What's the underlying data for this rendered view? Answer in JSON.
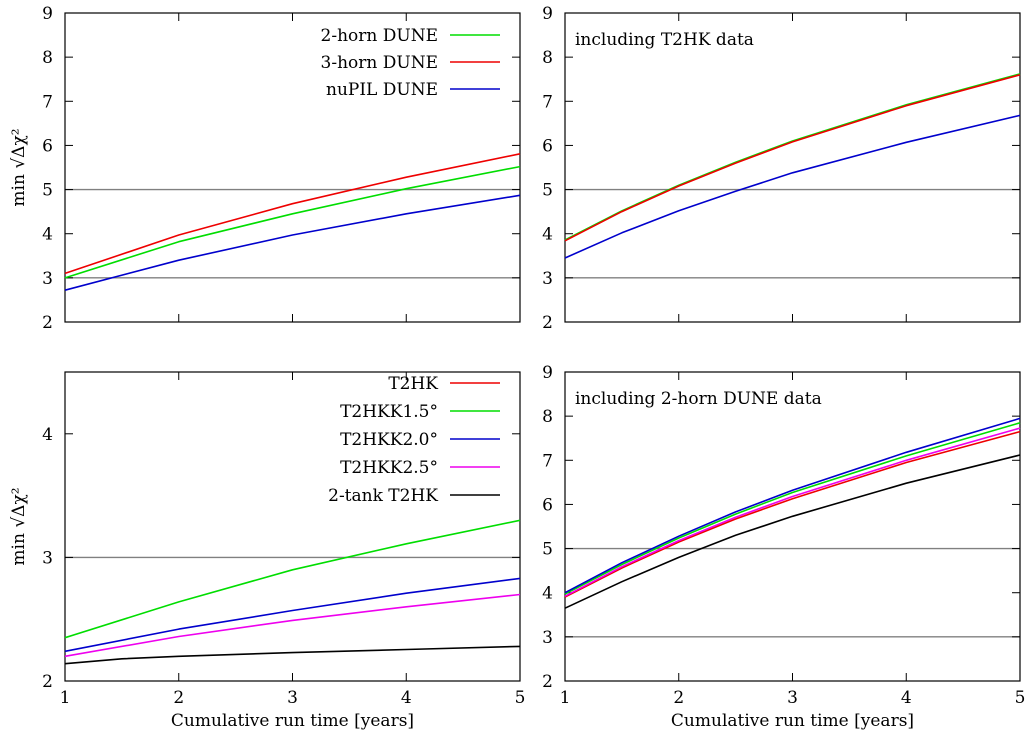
{
  "chart_data": [
    {
      "type": "line",
      "title": "",
      "xlabel": "",
      "ylabel": "min √Δχ²",
      "xlim": [
        1,
        5
      ],
      "ylim": [
        2,
        9
      ],
      "xticks": [
        "1",
        "2",
        "3",
        "4",
        "5"
      ],
      "yticks": [
        "2",
        "3",
        "4",
        "5",
        "6",
        "7",
        "8",
        "9"
      ],
      "show_xtick_labels": false,
      "reference_lines": [
        3,
        5
      ],
      "legend": "top-right",
      "annotation": "",
      "series": [
        {
          "name": "2-horn DUNE",
          "color": "#00dd00",
          "x": [
            1,
            2,
            3,
            4,
            5
          ],
          "values": [
            3.0,
            3.82,
            4.45,
            5.02,
            5.52
          ]
        },
        {
          "name": "3-horn DUNE",
          "color": "#ee0000",
          "x": [
            1,
            2,
            3,
            4,
            5
          ],
          "values": [
            3.1,
            3.97,
            4.68,
            5.28,
            5.81
          ]
        },
        {
          "name": "nuPIL DUNE",
          "color": "#0000cc",
          "x": [
            1,
            2,
            3,
            4,
            5
          ],
          "values": [
            2.72,
            3.4,
            3.97,
            4.45,
            4.87
          ]
        }
      ]
    },
    {
      "type": "line",
      "title": "",
      "xlabel": "",
      "ylabel": "",
      "xlim": [
        1,
        5
      ],
      "ylim": [
        2,
        9
      ],
      "xticks": [
        "1",
        "2",
        "3",
        "4",
        "5"
      ],
      "yticks": [
        "2",
        "3",
        "4",
        "5",
        "6",
        "7",
        "8",
        "9"
      ],
      "show_xtick_labels": false,
      "reference_lines": [
        3,
        5
      ],
      "legend": "",
      "annotation": "including T2HK data",
      "series": [
        {
          "color": "#00dd00",
          "x": [
            1,
            1.5,
            2,
            2.5,
            3,
            4,
            5
          ],
          "values": [
            3.86,
            4.52,
            5.1,
            5.62,
            6.1,
            6.92,
            7.62
          ]
        },
        {
          "color": "#ee0000",
          "x": [
            1,
            1.5,
            2,
            2.5,
            3,
            4,
            5
          ],
          "values": [
            3.84,
            4.5,
            5.08,
            5.6,
            6.08,
            6.9,
            7.6
          ]
        },
        {
          "color": "#0000cc",
          "x": [
            1,
            1.5,
            2,
            2.5,
            3,
            4,
            5
          ],
          "values": [
            3.45,
            4.02,
            4.52,
            4.96,
            5.38,
            6.07,
            6.68
          ]
        }
      ]
    },
    {
      "type": "line",
      "title": "",
      "xlabel": "Cumulative run time [years]",
      "ylabel": "min √Δχ²",
      "xlim": [
        1,
        5
      ],
      "ylim": [
        2,
        4.5
      ],
      "xticks": [
        "1",
        "2",
        "3",
        "4",
        "5"
      ],
      "yticks": [
        "2",
        "3",
        "4"
      ],
      "show_xtick_labels": true,
      "reference_lines": [
        3
      ],
      "legend": "top-right",
      "annotation": "",
      "series": [
        {
          "name": "T2HK",
          "color": "#ee0000",
          "x": [],
          "values": []
        },
        {
          "name": "T2HKK1.5°",
          "color": "#00dd00",
          "x": [
            1,
            2,
            3,
            4,
            5
          ],
          "values": [
            2.35,
            2.64,
            2.9,
            3.11,
            3.3
          ]
        },
        {
          "name": "T2HKK2.0°",
          "color": "#0000cc",
          "x": [
            1,
            2,
            3,
            4,
            5
          ],
          "values": [
            2.24,
            2.42,
            2.57,
            2.71,
            2.83
          ]
        },
        {
          "name": "T2HKK2.5°",
          "color": "#ee00ee",
          "x": [
            1,
            2,
            3,
            4,
            5
          ],
          "values": [
            2.2,
            2.36,
            2.49,
            2.6,
            2.7
          ]
        },
        {
          "name": "2-tank T2HK",
          "color": "#000000",
          "x": [
            1,
            1.5,
            2,
            3,
            4,
            5
          ],
          "values": [
            2.14,
            2.18,
            2.2,
            2.23,
            2.255,
            2.28
          ]
        }
      ]
    },
    {
      "type": "line",
      "title": "",
      "xlabel": "Cumulative run time [years]",
      "ylabel": "",
      "xlim": [
        1,
        5
      ],
      "ylim": [
        2,
        9
      ],
      "xticks": [
        "1",
        "2",
        "3",
        "4",
        "5"
      ],
      "yticks": [
        "2",
        "3",
        "4",
        "5",
        "6",
        "7",
        "8",
        "9"
      ],
      "show_xtick_labels": true,
      "reference_lines": [
        3,
        5
      ],
      "legend": "",
      "annotation": "including 2-horn DUNE data",
      "series": [
        {
          "color": "#000000",
          "x": [
            1,
            1.5,
            2,
            2.5,
            3,
            4,
            5
          ],
          "values": [
            3.65,
            4.25,
            4.8,
            5.3,
            5.73,
            6.48,
            7.12
          ]
        },
        {
          "color": "#ee0000",
          "x": [
            1,
            1.5,
            2,
            2.5,
            3,
            4,
            5
          ],
          "values": [
            3.9,
            4.56,
            5.15,
            5.67,
            6.13,
            6.95,
            7.65
          ]
        },
        {
          "color": "#ee00ee",
          "x": [
            1,
            1.5,
            2,
            2.5,
            3,
            4,
            5
          ],
          "values": [
            3.92,
            4.59,
            5.18,
            5.71,
            6.18,
            7.0,
            7.73
          ]
        },
        {
          "color": "#00dd00",
          "x": [
            1,
            1.5,
            2,
            2.5,
            3,
            4,
            5
          ],
          "values": [
            3.97,
            4.64,
            5.24,
            5.78,
            6.27,
            7.1,
            7.85
          ]
        },
        {
          "color": "#0000cc",
          "x": [
            1,
            1.5,
            2,
            2.5,
            3,
            4,
            5
          ],
          "values": [
            4.0,
            4.68,
            5.28,
            5.83,
            6.32,
            7.18,
            7.95
          ]
        }
      ]
    }
  ]
}
